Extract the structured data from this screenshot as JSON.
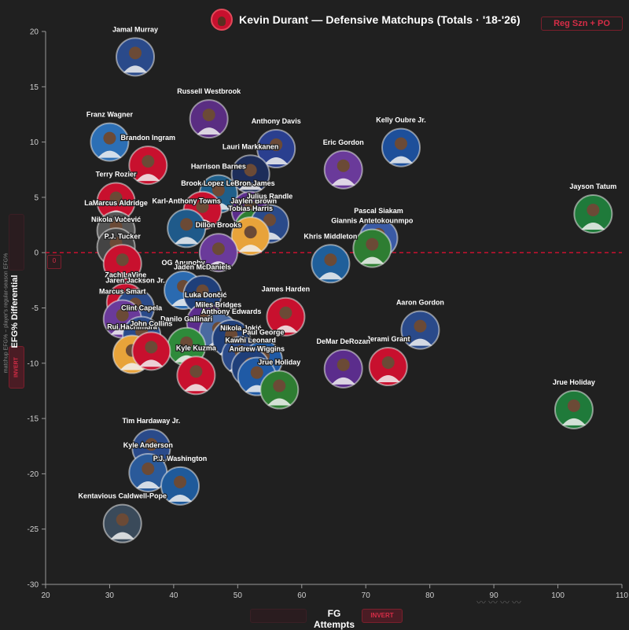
{
  "header": {
    "title": "Kevin Durant — Defensive Matchups (Totals · '18-'26)"
  },
  "controls": {
    "season_toggle": "Reg Szn + PO",
    "x_invert": "INVERT",
    "y_invert": "INVERT",
    "zero_tag": "0"
  },
  "colors": {
    "background": "#202020",
    "accent": "#c8102e",
    "zero_line": "#c8102e"
  },
  "chart_data": {
    "type": "scatter",
    "title": "Kevin Durant — Defensive Matchups (Totals · '18-'26)",
    "xlabel": "FG Attempts",
    "ylabel": "EFG% Differential",
    "ylabel_sub": "matchup EFG% − player's regular-season EFG%",
    "xlim": [
      20,
      110
    ],
    "ylim": [
      -30,
      20
    ],
    "xticks": [
      20,
      30,
      40,
      50,
      60,
      70,
      80,
      90,
      100,
      110
    ],
    "yticks": [
      -30,
      -25,
      -20,
      -15,
      -10,
      -5,
      0,
      5,
      10,
      15,
      20
    ],
    "reference_line_y": 0,
    "grid": false,
    "points": [
      {
        "name": "Jamal Murray",
        "x": 34.0,
        "y": 17.7,
        "color": "#2a4a8a"
      },
      {
        "name": "Russell Westbrook",
        "x": 45.5,
        "y": 12.1,
        "color": "#5a2d82"
      },
      {
        "name": "Franz Wagner",
        "x": 30.0,
        "y": 10.0,
        "color": "#2c6fb5"
      },
      {
        "name": "Anthony Davis",
        "x": 56.0,
        "y": 9.4,
        "color": "#2a3f8f"
      },
      {
        "name": "Kelly Oubre Jr.",
        "x": 75.5,
        "y": 9.5,
        "color": "#1d4f9a"
      },
      {
        "name": "Brandon Ingram",
        "x": 36.0,
        "y": 7.9,
        "color": "#c8102e"
      },
      {
        "name": "Eric Gordon",
        "x": 66.5,
        "y": 7.5,
        "color": "#6a3a9a"
      },
      {
        "name": "Lauri Markkanen",
        "x": 52.0,
        "y": 7.1,
        "color": "#1d2d5a"
      },
      {
        "name": "Harrison Barnes",
        "x": 47.0,
        "y": 5.3,
        "color": "#1f5f8a"
      },
      {
        "name": "LeBron James",
        "x": 52.0,
        "y": 3.8,
        "color": "#5b2d8c"
      },
      {
        "name": "Brook Lopez",
        "x": 44.5,
        "y": 3.8,
        "color": "#c8102e"
      },
      {
        "name": "Terry Rozier",
        "x": 31.0,
        "y": 4.6,
        "color": "#c8102e"
      },
      {
        "name": "Jaylen Brown",
        "x": 52.5,
        "y": 2.2,
        "color": "#2e7d32"
      },
      {
        "name": "Jayson Tatum",
        "x": 105.5,
        "y": 3.5,
        "color": "#1f7a3a"
      },
      {
        "name": "Karl-Anthony Towns",
        "x": 42.0,
        "y": 2.2,
        "color": "#1f5a8a"
      },
      {
        "name": "Julius Randle",
        "x": 55.0,
        "y": 2.6,
        "color": "#2a4a8a"
      },
      {
        "name": "Tobias Harris",
        "x": 52.0,
        "y": 1.5,
        "color": "#e8a33a"
      },
      {
        "name": "Pascal Siakam",
        "x": 72.0,
        "y": 1.3,
        "color": "#3a5aa5"
      },
      {
        "name": "Giannis Antetokounmpo",
        "x": 71.0,
        "y": 0.4,
        "color": "#2e7d32"
      },
      {
        "name": "LaMarcus Aldridge",
        "x": 31.0,
        "y": 2.0,
        "color": "#555555"
      },
      {
        "name": "Nikola Vučević",
        "x": 31.0,
        "y": 0.5,
        "color": "#444444"
      },
      {
        "name": "Dillon Brooks",
        "x": 47.0,
        "y": 0.0,
        "color": "#6a3a9a"
      },
      {
        "name": "Khris Middleton",
        "x": 64.5,
        "y": -1.0,
        "color": "#1f5f9a"
      },
      {
        "name": "P.J. Tucker",
        "x": 32.0,
        "y": -1.0,
        "color": "#c8102e"
      },
      {
        "name": "OG Anunoby",
        "x": 41.5,
        "y": -3.4,
        "color": "#2a6ab0"
      },
      {
        "name": "Jaden McDaniels",
        "x": 44.5,
        "y": -3.8,
        "color": "#1f3f7a"
      },
      {
        "name": "Zach LaVine",
        "x": 32.5,
        "y": -4.5,
        "color": "#c8102e"
      },
      {
        "name": "Jaren Jackson Jr.",
        "x": 34.0,
        "y": -5.0,
        "color": "#2a4a8a"
      },
      {
        "name": "Luka Dončić",
        "x": 45.0,
        "y": -6.3,
        "color": "#5b2d8c"
      },
      {
        "name": "James Harden",
        "x": 57.5,
        "y": -5.8,
        "color": "#c8102e"
      },
      {
        "name": "Marcus Smart",
        "x": 32.0,
        "y": -6.0,
        "color": "#6a3a9a"
      },
      {
        "name": "Miles Bridges",
        "x": 47.0,
        "y": -7.2,
        "color": "#4a6aa0"
      },
      {
        "name": "Clint Capela",
        "x": 35.0,
        "y": -7.5,
        "color": "#2a4a8a"
      },
      {
        "name": "Aaron Gordon",
        "x": 78.5,
        "y": -7.0,
        "color": "#2a4a8a"
      },
      {
        "name": "Anthony Edwards",
        "x": 49.0,
        "y": -7.8,
        "color": "#1f3f7a"
      },
      {
        "name": "Danilo Gallinari",
        "x": 42.0,
        "y": -8.5,
        "color": "#2e8a3a"
      },
      {
        "name": "Rui Hachimura",
        "x": 33.5,
        "y": -9.2,
        "color": "#e8a33a"
      },
      {
        "name": "Nikola Jokić",
        "x": 50.5,
        "y": -9.3,
        "color": "#2a4a8a"
      },
      {
        "name": "Paul George",
        "x": 54.0,
        "y": -9.7,
        "color": "#1f5aa5"
      },
      {
        "name": "Jerami Grant",
        "x": 73.5,
        "y": -10.3,
        "color": "#c8102e"
      },
      {
        "name": "John Collins",
        "x": 36.5,
        "y": -8.9,
        "color": "#c8102e"
      },
      {
        "name": "DeMar DeRozan",
        "x": 66.5,
        "y": -10.5,
        "color": "#5b2d8c"
      },
      {
        "name": "Kawhi Leonard",
        "x": 52.0,
        "y": -10.4,
        "color": "#1f3f7a"
      },
      {
        "name": "Andrew Wiggins",
        "x": 53.0,
        "y": -11.2,
        "color": "#1f5aa5"
      },
      {
        "name": "Kyle Kuzma",
        "x": 43.5,
        "y": -11.1,
        "color": "#c8102e"
      },
      {
        "name": "Jrue Holiday",
        "x": 56.5,
        "y": -12.4,
        "color": "#2e7d32"
      },
      {
        "name": "Jrue Holiday",
        "x": 102.5,
        "y": -14.2,
        "color": "#1f7a3a"
      },
      {
        "name": "Tim Hardaway Jr.",
        "x": 36.5,
        "y": -17.7,
        "color": "#2a4a8a"
      },
      {
        "name": "Kyle Anderson",
        "x": 36.0,
        "y": -19.9,
        "color": "#2a5a9a"
      },
      {
        "name": "P.J. Washington",
        "x": 41.0,
        "y": -21.1,
        "color": "#1f5a9a"
      },
      {
        "name": "Kentavious Caldwell-Pope",
        "x": 32.0,
        "y": -24.5,
        "color": "#3a4a5a"
      }
    ]
  }
}
